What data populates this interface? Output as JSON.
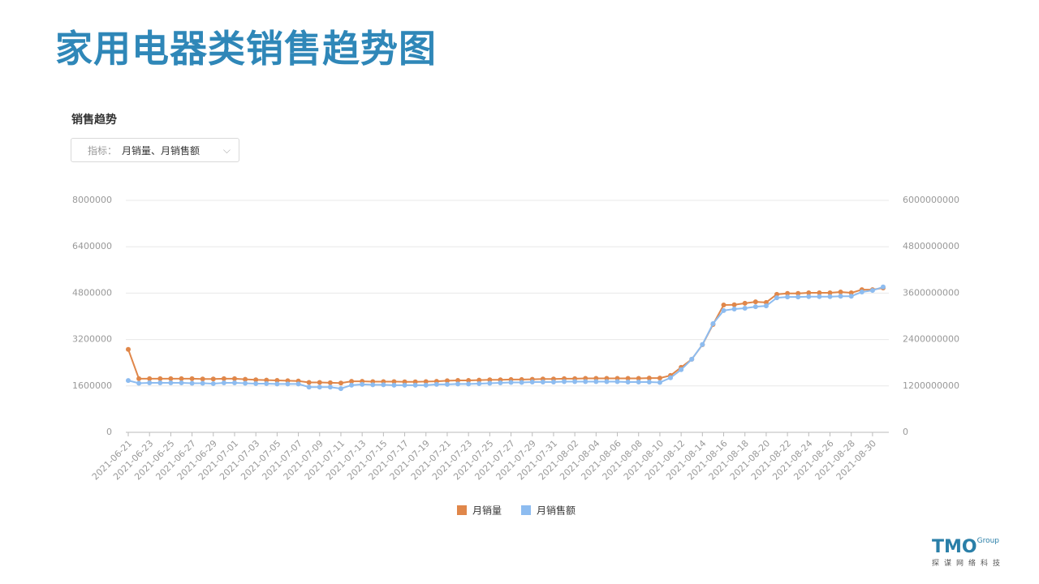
{
  "header": {
    "title": "家用电器类销售趋势图",
    "section": "销售趋势",
    "filter_label": "指标：",
    "filter_value": "月销量、月销售额"
  },
  "logo": {
    "brand": "TMO",
    "sub": "Group",
    "tagline": "探谋网络科技"
  },
  "chart_data": {
    "type": "line",
    "categories": [
      "2021-06-21",
      null,
      "2021-06-23",
      null,
      "2021-06-25",
      null,
      "2021-06-27",
      null,
      "2021-06-29",
      null,
      "2021-07-01",
      null,
      "2021-07-03",
      null,
      "2021-07-05",
      null,
      "2021-07-07",
      null,
      "2021-07-09",
      null,
      "2021-07-11",
      null,
      "2021-07-13",
      null,
      "2021-07-15",
      null,
      "2021-07-17",
      null,
      "2021-07-19",
      null,
      "2021-07-21",
      null,
      "2021-07-23",
      null,
      "2021-07-25",
      null,
      "2021-07-27",
      null,
      "2021-07-29",
      null,
      "2021-07-31",
      null,
      "2021-08-02",
      null,
      "2021-08-04",
      null,
      "2021-08-06",
      null,
      "2021-08-08",
      null,
      "2021-08-10",
      null,
      "2021-08-12",
      null,
      "2021-08-14",
      null,
      "2021-08-16",
      null,
      "2021-08-18",
      null,
      "2021-08-20",
      null,
      "2021-08-22",
      null,
      "2021-08-24",
      null,
      "2021-08-26",
      null,
      "2021-08-28",
      null,
      "2021-08-30",
      null
    ],
    "series": [
      {
        "name": "月销量",
        "color": "#e0874a",
        "values": [
          2860000,
          1850000,
          1850000,
          1850000,
          1850000,
          1850000,
          1850000,
          1840000,
          1840000,
          1850000,
          1850000,
          1830000,
          1810000,
          1800000,
          1790000,
          1780000,
          1770000,
          1720000,
          1720000,
          1710000,
          1700000,
          1760000,
          1760000,
          1750000,
          1750000,
          1750000,
          1740000,
          1740000,
          1750000,
          1760000,
          1780000,
          1790000,
          1790000,
          1800000,
          1810000,
          1810000,
          1820000,
          1820000,
          1830000,
          1840000,
          1840000,
          1850000,
          1850000,
          1860000,
          1860000,
          1860000,
          1860000,
          1860000,
          1860000,
          1870000,
          1870000,
          1960000,
          2240000,
          2520000,
          3020000,
          3720000,
          4390000,
          4400000,
          4450000,
          4500000,
          4480000,
          4760000,
          4790000,
          4790000,
          4810000,
          4810000,
          4810000,
          4840000,
          4810000,
          4920000,
          4920000,
          4980000
        ]
      },
      {
        "name": "月销售额",
        "color": "#8dbcf0",
        "axis": "y2",
        "values": [
          1340000000,
          1270000000,
          1280000000,
          1280000000,
          1280000000,
          1280000000,
          1270000000,
          1270000000,
          1260000000,
          1280000000,
          1280000000,
          1270000000,
          1260000000,
          1260000000,
          1250000000,
          1250000000,
          1250000000,
          1170000000,
          1170000000,
          1170000000,
          1130000000,
          1220000000,
          1240000000,
          1230000000,
          1230000000,
          1220000000,
          1220000000,
          1220000000,
          1220000000,
          1240000000,
          1240000000,
          1250000000,
          1250000000,
          1260000000,
          1270000000,
          1280000000,
          1290000000,
          1290000000,
          1300000000,
          1300000000,
          1300000000,
          1310000000,
          1310000000,
          1310000000,
          1310000000,
          1310000000,
          1310000000,
          1300000000,
          1300000000,
          1300000000,
          1290000000,
          1410000000,
          1620000000,
          1890000000,
          2270000000,
          2810000000,
          3150000000,
          3190000000,
          3210000000,
          3250000000,
          3270000000,
          3480000000,
          3500000000,
          3500000000,
          3510000000,
          3510000000,
          3510000000,
          3520000000,
          3520000000,
          3630000000,
          3670000000,
          3760000000
        ]
      }
    ],
    "ylim": [
      0,
      8000000
    ],
    "yticks": [
      0,
      1600000,
      3200000,
      4800000,
      6400000,
      8000000
    ],
    "y2lim": [
      0,
      6000000000
    ],
    "y2ticks": [
      0,
      1200000000,
      2400000000,
      3600000000,
      4800000000,
      6000000000
    ],
    "grid": true,
    "legend": "bottom"
  }
}
